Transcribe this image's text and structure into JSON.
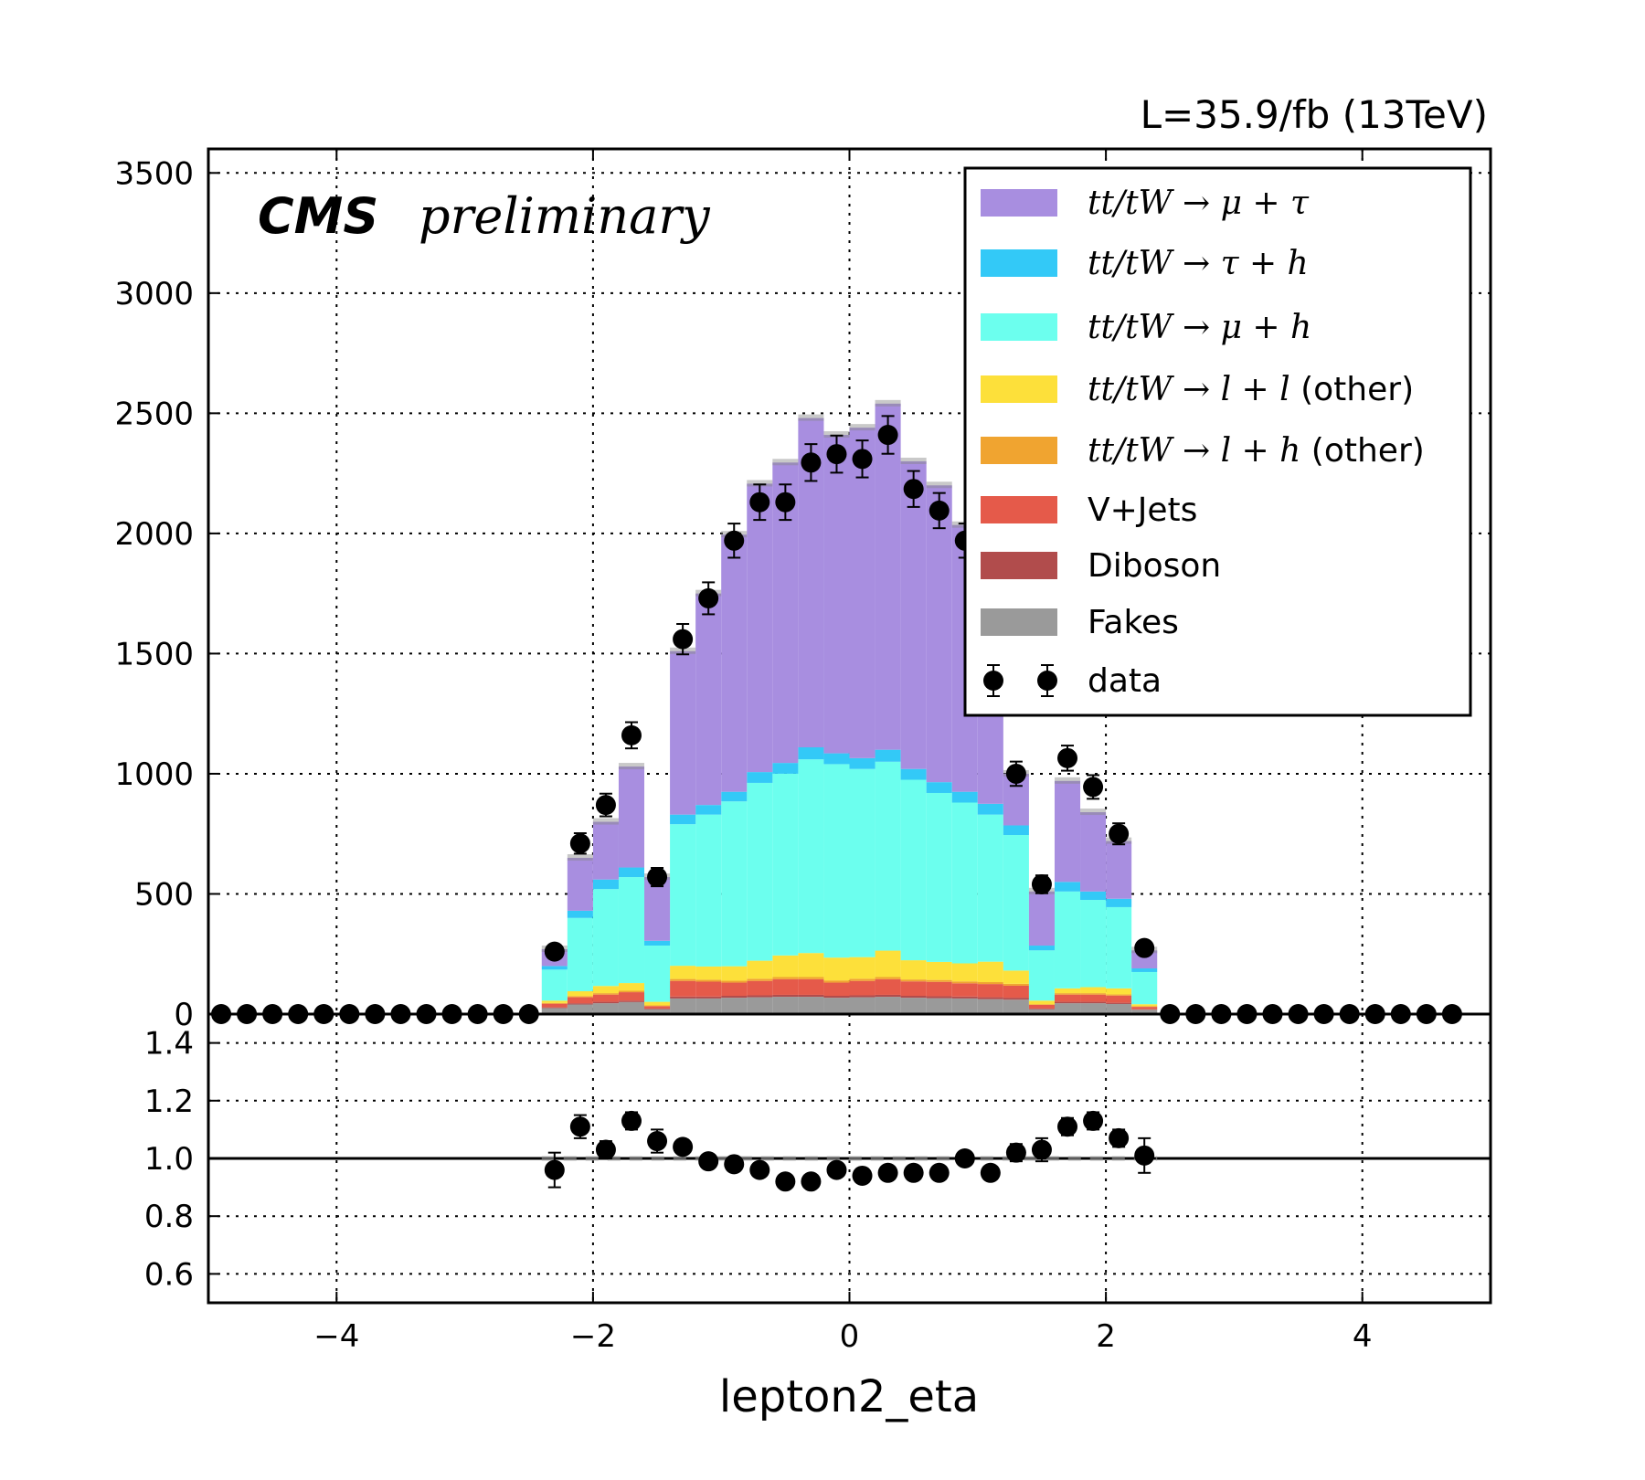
{
  "header": {
    "lumi_label": "L=35.9/fb (13TeV)",
    "cms_label": "CMS",
    "preliminary_label": "preliminary"
  },
  "colors": {
    "tt_mu_tau": "#a88ee0",
    "tt_tau_h": "#33c9f7",
    "tt_mu_h": "#6cffee",
    "tt_ll_other": "#fde03a",
    "tt_lh_other": "#f0a430",
    "vjets": "#e55a4a",
    "diboson": "#b14c4c",
    "fakes": "#9a9a9a",
    "data": "#000000"
  },
  "chart_data": [
    {
      "type": "bar",
      "subtype": "stacked-histogram",
      "title": "",
      "xlabel": "lepton2_eta",
      "ylabel": "",
      "xlim": [
        -5,
        5
      ],
      "ylim": [
        0,
        3600
      ],
      "xticks": [
        -4,
        -2,
        0,
        2,
        4
      ],
      "xtick_labels": [
        "−4",
        "−2",
        "0",
        "2",
        "4"
      ],
      "yticks": [
        0,
        500,
        1000,
        1500,
        2000,
        2500,
        3000,
        3500
      ],
      "ytick_labels": [
        "0",
        "500",
        "1000",
        "1500",
        "2000",
        "2500",
        "3000",
        "3500"
      ],
      "grid": true,
      "legend_position": "top-right",
      "bin_width": 0.2,
      "bin_centers": [
        -2.3,
        -2.1,
        -1.9,
        -1.7,
        -1.5,
        -1.3,
        -1.1,
        -0.9,
        -0.7,
        -0.5,
        -0.3,
        -0.1,
        0.1,
        0.3,
        0.5,
        0.7,
        0.9,
        1.1,
        1.3,
        1.5,
        1.7,
        1.9,
        2.1,
        2.3
      ],
      "series": [
        {
          "name": "Fakes",
          "color_key": "fakes",
          "values": [
            25,
            40,
            45,
            50,
            20,
            65,
            65,
            68,
            70,
            72,
            72,
            68,
            70,
            72,
            68,
            66,
            65,
            62,
            60,
            20,
            45,
            45,
            42,
            18
          ]
        },
        {
          "name": "Diboson",
          "color_key": "diboson",
          "values": [
            3,
            5,
            6,
            6,
            3,
            8,
            8,
            8,
            8,
            8,
            8,
            8,
            8,
            8,
            8,
            8,
            8,
            8,
            8,
            3,
            6,
            6,
            5,
            2
          ]
        },
        {
          "name": "V+Jets",
          "color_key": "vjets",
          "values": [
            15,
            25,
            30,
            35,
            10,
            65,
            62,
            55,
            60,
            65,
            65,
            55,
            60,
            65,
            60,
            60,
            55,
            55,
            50,
            15,
            30,
            30,
            30,
            10
          ]
        },
        {
          "name": "$tt/tW \\rightarrow l+h$ (other)",
          "color_key": "tt_lh_other",
          "values": [
            3,
            5,
            6,
            6,
            3,
            8,
            8,
            8,
            9,
            9,
            9,
            9,
            9,
            9,
            8,
            8,
            8,
            8,
            8,
            3,
            6,
            6,
            5,
            3
          ]
        },
        {
          "name": "$tt/tW \\rightarrow l+l$ (other)",
          "color_key": "tt_ll_other",
          "values": [
            10,
            20,
            30,
            32,
            15,
            55,
            55,
            60,
            75,
            90,
            100,
            95,
            90,
            110,
            80,
            75,
            75,
            85,
            55,
            15,
            20,
            25,
            25,
            8
          ]
        },
        {
          "name": "$tt/tW \\rightarrow \\mu+h$",
          "color_key": "tt_mu_h",
          "values": [
            129,
            305,
            403,
            441,
            234,
            589,
            632,
            686,
            740,
            756,
            806,
            805,
            783,
            786,
            751,
            703,
            669,
            612,
            564,
            209,
            403,
            363,
            338,
            134
          ]
        },
        {
          "name": "$tt/tW \\rightarrow \\tau+h$",
          "color_key": "tt_tau_h",
          "values": [
            15,
            30,
            40,
            40,
            20,
            40,
            40,
            40,
            45,
            45,
            50,
            45,
            45,
            50,
            45,
            45,
            45,
            45,
            40,
            20,
            40,
            35,
            35,
            15
          ]
        },
        {
          "name": "$tt/tW \\rightarrow \\mu+\\tau$",
          "color_key": "tt_mu_tau",
          "values": [
            70,
            220,
            240,
            420,
            265,
            680,
            880,
            1070,
            1200,
            1250,
            1370,
            1325,
            1375,
            1440,
            1280,
            1235,
            1110,
            955,
            215,
            225,
            420,
            330,
            240,
            75
          ]
        }
      ],
      "data": {
        "name": "data",
        "color_key": "data",
        "x": [
          -4.9,
          -4.7,
          -4.5,
          -4.3,
          -4.1,
          -3.9,
          -3.7,
          -3.5,
          -3.3,
          -3.1,
          -2.9,
          -2.7,
          -2.5,
          -2.3,
          -2.1,
          -1.9,
          -1.7,
          -1.5,
          -1.3,
          -1.1,
          -0.9,
          -0.7,
          -0.5,
          -0.3,
          -0.1,
          0.1,
          0.3,
          0.5,
          0.7,
          0.9,
          1.1,
          1.3,
          1.5,
          1.7,
          1.9,
          2.1,
          2.3,
          2.5,
          2.7,
          2.9,
          3.1,
          3.3,
          3.5,
          3.7,
          3.9,
          4.1,
          4.3,
          4.5,
          4.7
        ],
        "y": [
          0,
          0,
          0,
          0,
          0,
          0,
          0,
          0,
          0,
          0,
          0,
          0,
          0,
          260,
          710,
          870,
          1160,
          570,
          1560,
          1730,
          1970,
          2130,
          2130,
          2295,
          2330,
          2310,
          2410,
          2185,
          2095,
          1970,
          1530,
          1000,
          540,
          1065,
          945,
          750,
          275,
          0,
          0,
          0,
          0,
          0,
          0,
          0,
          0,
          0,
          0,
          0,
          0
        ]
      }
    },
    {
      "type": "scatter",
      "subtype": "ratio",
      "title": "",
      "xlabel": "lepton2_eta",
      "ylabel": "",
      "xlim": [
        -5,
        5
      ],
      "ylim": [
        0.5,
        1.5
      ],
      "xticks": [
        -4,
        -2,
        0,
        2,
        4
      ],
      "yticks": [
        0.6,
        0.8,
        1.0,
        1.2,
        1.4
      ],
      "ytick_labels": [
        "0.6",
        "0.8",
        "1.0",
        "1.2",
        "1.4"
      ],
      "grid": true,
      "reference_line": 1.0,
      "x": [
        -2.3,
        -2.1,
        -1.9,
        -1.7,
        -1.5,
        -1.3,
        -1.1,
        -0.9,
        -0.7,
        -0.5,
        -0.3,
        -0.1,
        0.1,
        0.3,
        0.5,
        0.7,
        0.9,
        1.1,
        1.3,
        1.5,
        1.7,
        1.9,
        2.1,
        2.3
      ],
      "y": [
        0.96,
        1.11,
        1.03,
        1.13,
        1.06,
        1.04,
        0.99,
        0.98,
        0.96,
        0.92,
        0.92,
        0.96,
        0.94,
        0.95,
        0.95,
        0.95,
        1.0,
        0.95,
        1.02,
        1.03,
        1.11,
        1.13,
        1.07,
        1.01
      ],
      "yerr": [
        0.06,
        0.04,
        0.03,
        0.03,
        0.04,
        0.02,
        0.02,
        0.02,
        0.02,
        0.02,
        0.02,
        0.02,
        0.02,
        0.02,
        0.02,
        0.02,
        0.02,
        0.02,
        0.03,
        0.04,
        0.03,
        0.03,
        0.03,
        0.06
      ]
    }
  ]
}
